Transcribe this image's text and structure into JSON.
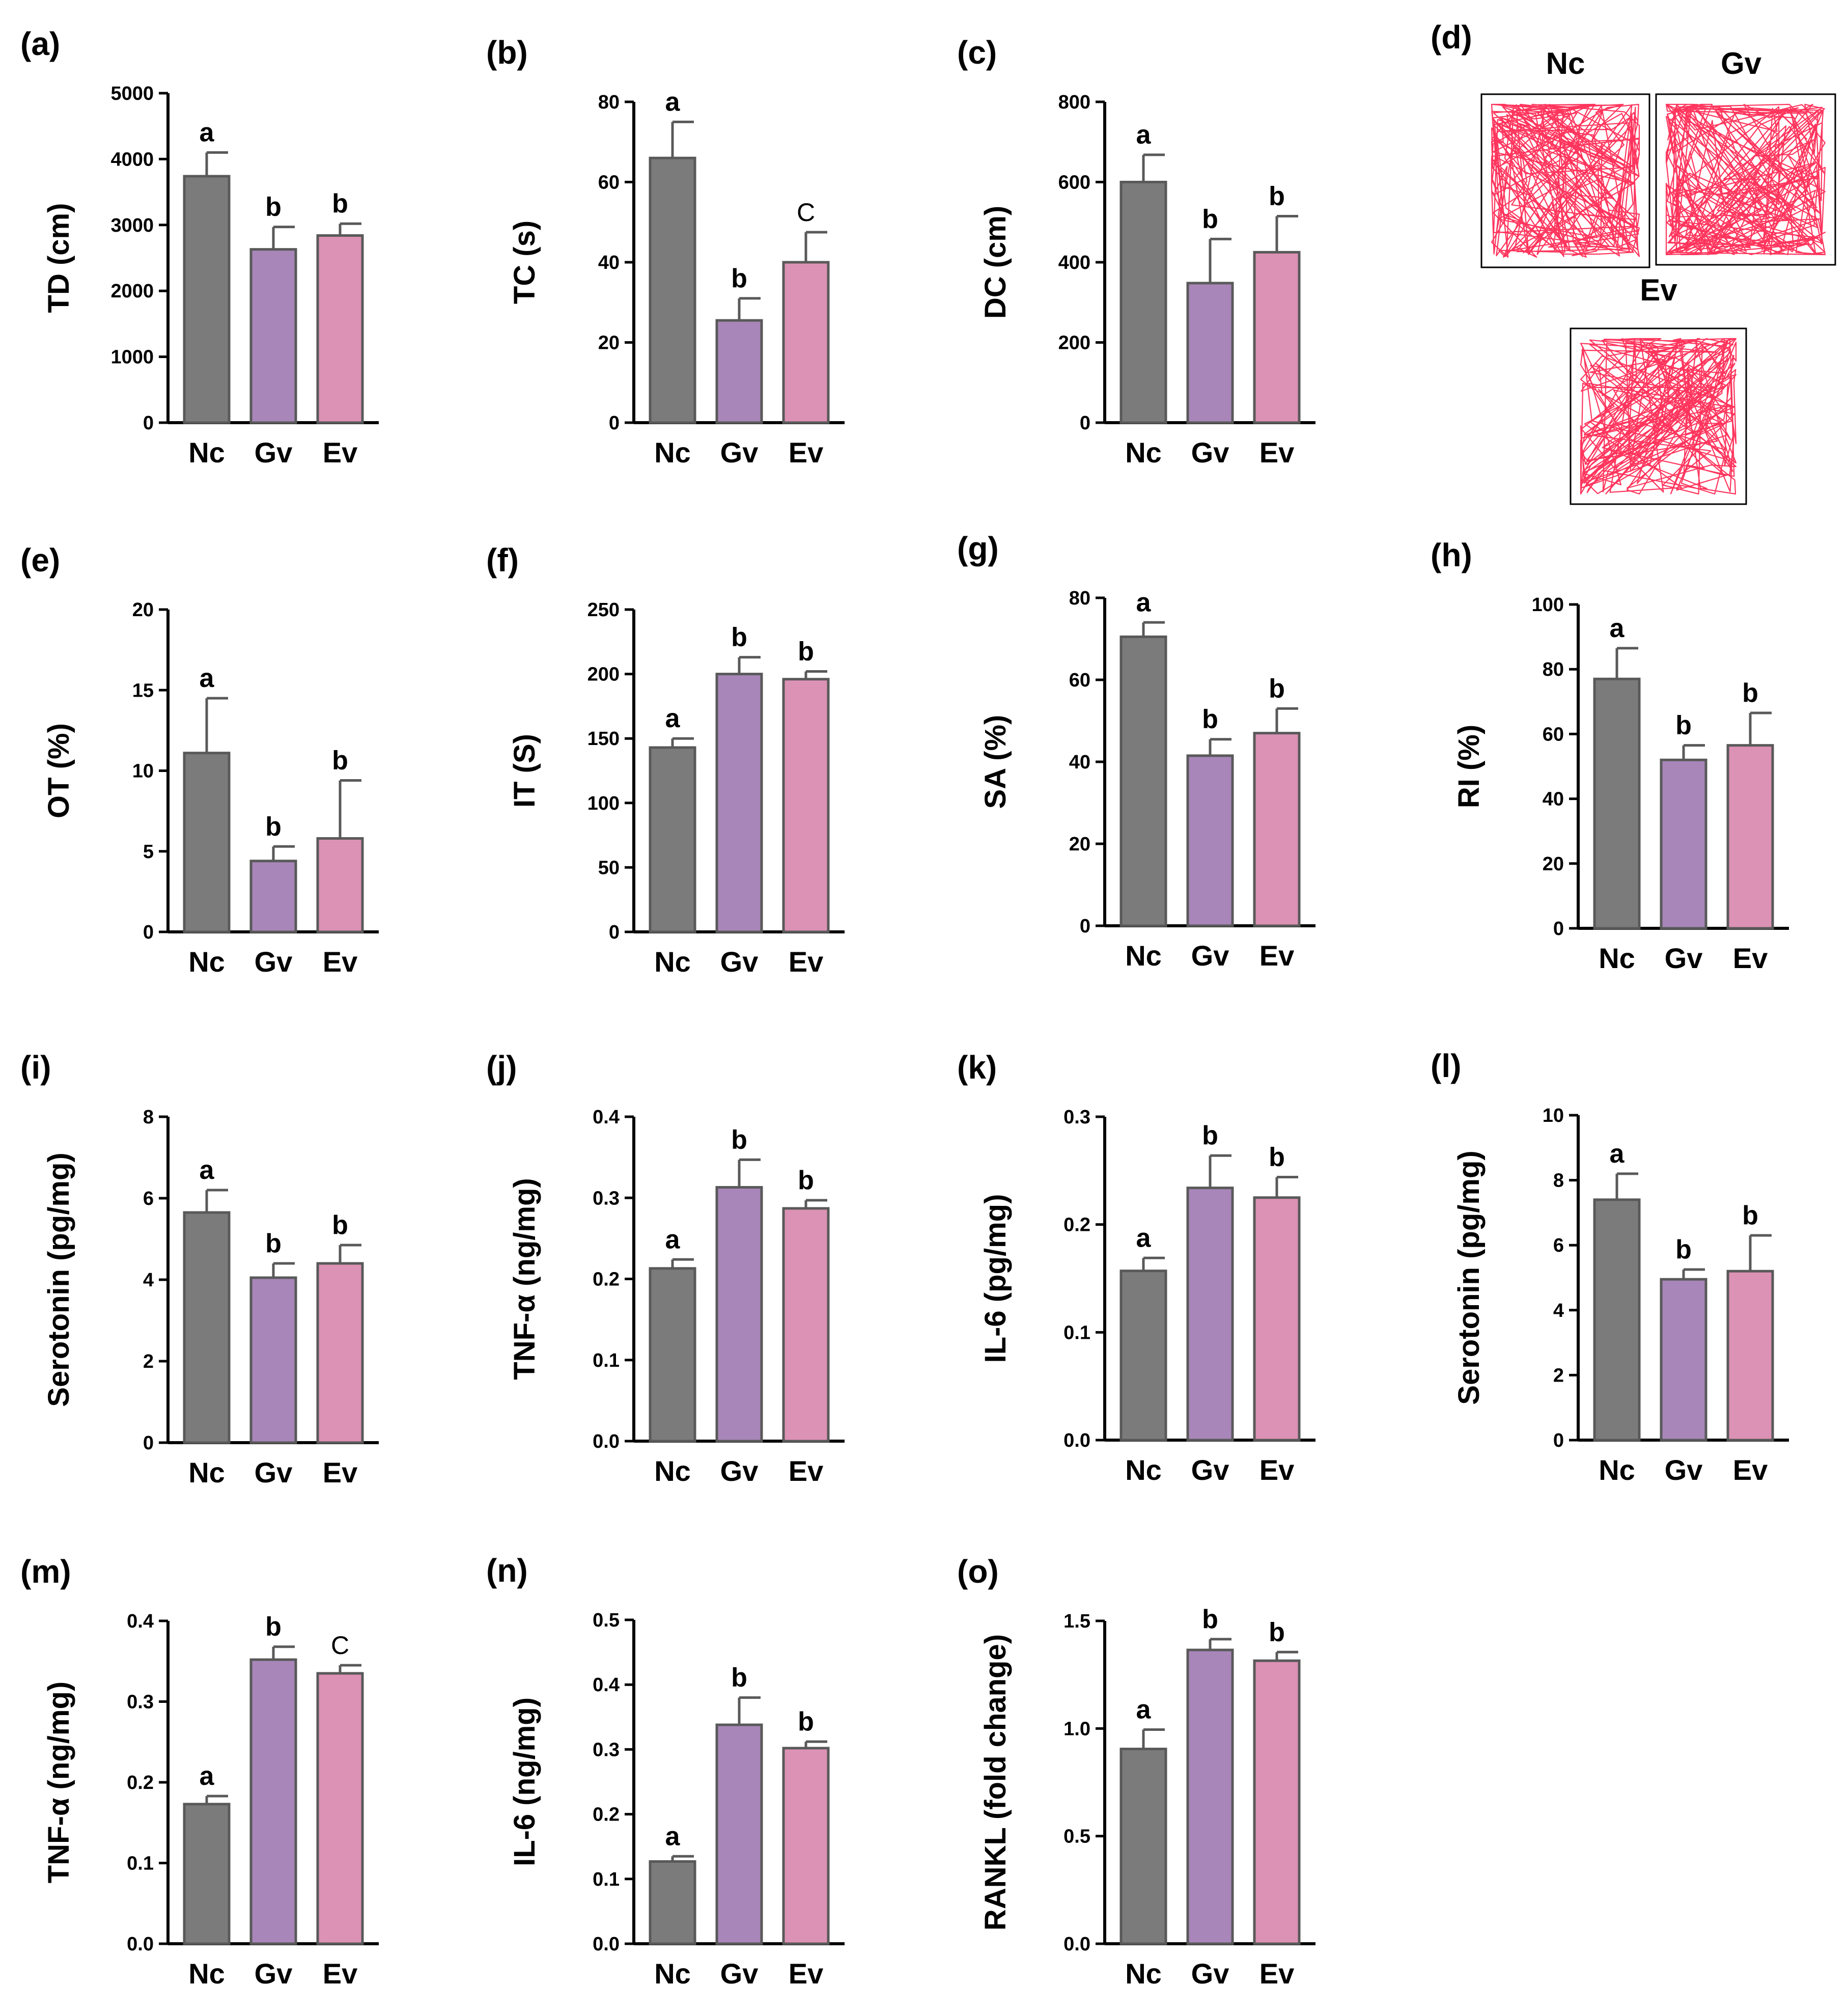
{
  "colors": {
    "Nc": "#7b7b7b",
    "Gv": "#a886b9",
    "Ev": "#dc92b4",
    "axis": "#000000",
    "bar_edge": "#595959",
    "track": "#ff1f4b"
  },
  "track_panel": {
    "label": "(d)",
    "titles": [
      "Nc",
      "Gv",
      "Ev"
    ]
  },
  "chart_data": [
    {
      "label": "(a)",
      "type": "bar",
      "ylabel": "TD (cm)",
      "categories": [
        "Nc",
        "Gv",
        "Ev"
      ],
      "values": [
        3740,
        2630,
        2840
      ],
      "errors": [
        360,
        340,
        180
      ],
      "ylim": [
        0,
        5000
      ],
      "ticks": [
        0,
        1000,
        2000,
        3000,
        4000,
        5000
      ],
      "tick_labels": [
        "0",
        "1000",
        "2000",
        "3000",
        "4000",
        "5000"
      ],
      "letters": [
        "a",
        "b",
        "b"
      ]
    },
    {
      "label": "(b)",
      "type": "bar",
      "ylabel": "TC (s)",
      "categories": [
        "Nc",
        "Gv",
        "Ev"
      ],
      "values": [
        66,
        25.5,
        40
      ],
      "errors": [
        9,
        5.5,
        7.5
      ],
      "ylim": [
        0,
        80
      ],
      "ticks": [
        0,
        20,
        40,
        60,
        80
      ],
      "tick_labels": [
        "0",
        "20",
        "40",
        "60",
        "80"
      ],
      "letters": [
        "a",
        "b",
        "C"
      ]
    },
    {
      "label": "(c)",
      "type": "bar",
      "ylabel": "DC (cm)",
      "categories": [
        "Nc",
        "Gv",
        "Ev"
      ],
      "values": [
        600,
        348,
        425
      ],
      "errors": [
        68,
        110,
        90
      ],
      "ylim": [
        0,
        800
      ],
      "ticks": [
        0,
        200,
        400,
        600,
        800
      ],
      "tick_labels": [
        "0",
        "200",
        "400",
        "600",
        "800"
      ],
      "letters": [
        "a",
        "b",
        "b"
      ]
    },
    {
      "label": "(e)",
      "type": "bar",
      "ylabel": "OT (%)",
      "categories": [
        "Nc",
        "Gv",
        "Ev"
      ],
      "values": [
        11.1,
        4.4,
        5.8
      ],
      "errors": [
        3.4,
        0.9,
        3.6
      ],
      "ylim": [
        0,
        20
      ],
      "ticks": [
        0,
        5,
        10,
        15,
        20
      ],
      "tick_labels": [
        "0",
        "5",
        "10",
        "15",
        "20"
      ],
      "letters": [
        "a",
        "b",
        "b"
      ]
    },
    {
      "label": "(f)",
      "type": "bar",
      "ylabel": "IT (S)",
      "categories": [
        "Nc",
        "Gv",
        "Ev"
      ],
      "values": [
        143,
        200,
        196
      ],
      "errors": [
        7,
        13,
        6
      ],
      "ylim": [
        0,
        250
      ],
      "ticks": [
        0,
        50,
        100,
        150,
        200,
        250
      ],
      "tick_labels": [
        "0",
        "50",
        "100",
        "150",
        "200",
        "250"
      ],
      "letters": [
        "a",
        "b",
        "b"
      ]
    },
    {
      "label": "(g)",
      "type": "bar",
      "ylabel": "SA (%)",
      "categories": [
        "Nc",
        "Gv",
        "Ev"
      ],
      "values": [
        70.5,
        41.5,
        47
      ],
      "errors": [
        3.5,
        4,
        6
      ],
      "ylim": [
        0,
        80
      ],
      "ticks": [
        0,
        20,
        40,
        60,
        80
      ],
      "tick_labels": [
        "0",
        "20",
        "40",
        "60",
        "80"
      ],
      "letters": [
        "a",
        "b",
        "b"
      ]
    },
    {
      "label": "(h)",
      "type": "bar",
      "ylabel": "RI (%)",
      "categories": [
        "Nc",
        "Gv",
        "Ev"
      ],
      "values": [
        77,
        52,
        56.5
      ],
      "errors": [
        9.5,
        4.5,
        10
      ],
      "ylim": [
        0,
        100
      ],
      "ticks": [
        0,
        20,
        40,
        60,
        80,
        100
      ],
      "tick_labels": [
        "0",
        "20",
        "40",
        "60",
        "80",
        "100"
      ],
      "letters": [
        "a",
        "b",
        "b"
      ]
    },
    {
      "label": "(i)",
      "type": "bar",
      "ylabel": "Serotonin (pg/mg)",
      "categories": [
        "Nc",
        "Gv",
        "Ev"
      ],
      "values": [
        5.65,
        4.05,
        4.4
      ],
      "errors": [
        0.55,
        0.35,
        0.45
      ],
      "ylim": [
        0,
        8
      ],
      "ticks": [
        0,
        2,
        4,
        6,
        8
      ],
      "tick_labels": [
        "0",
        "2",
        "4",
        "6",
        "8"
      ],
      "letters": [
        "a",
        "b",
        "b"
      ]
    },
    {
      "label": "(j)",
      "type": "bar",
      "ylabel": "TNF-α (ng/mg)",
      "categories": [
        "Nc",
        "Gv",
        "Ev"
      ],
      "values": [
        0.213,
        0.313,
        0.287
      ],
      "errors": [
        0.011,
        0.034,
        0.01
      ],
      "ylim": [
        0,
        0.4
      ],
      "ticks": [
        0,
        0.1,
        0.2,
        0.3,
        0.4
      ],
      "tick_labels": [
        "0.0",
        "0.1",
        "0.2",
        "0.3",
        "0.4"
      ],
      "letters": [
        "a",
        "b",
        "b"
      ]
    },
    {
      "label": "(k)",
      "type": "bar",
      "ylabel": "IL-6 (pg/mg)",
      "categories": [
        "Nc",
        "Gv",
        "Ev"
      ],
      "values": [
        0.157,
        0.234,
        0.225
      ],
      "errors": [
        0.012,
        0.03,
        0.019
      ],
      "ylim": [
        0,
        0.3
      ],
      "ticks": [
        0,
        0.1,
        0.2,
        0.3
      ],
      "tick_labels": [
        "0.0",
        "0.1",
        "0.2",
        "0.3"
      ],
      "letters": [
        "a",
        "b",
        "b"
      ]
    },
    {
      "label": "(l)",
      "type": "bar",
      "ylabel": "Serotonin (pg/mg)",
      "categories": [
        "Nc",
        "Gv",
        "Ev"
      ],
      "values": [
        7.4,
        4.95,
        5.2
      ],
      "errors": [
        0.8,
        0.3,
        1.1
      ],
      "ylim": [
        0,
        10
      ],
      "ticks": [
        0,
        2,
        4,
        6,
        8,
        10
      ],
      "tick_labels": [
        "0",
        "2",
        "4",
        "6",
        "8",
        "10"
      ],
      "letters": [
        "a",
        "b",
        "b"
      ]
    },
    {
      "label": "(m)",
      "type": "bar",
      "ylabel": "TNF-α (ng/mg)",
      "categories": [
        "Nc",
        "Gv",
        "Ev"
      ],
      "values": [
        0.173,
        0.352,
        0.335
      ],
      "errors": [
        0.01,
        0.016,
        0.01
      ],
      "ylim": [
        0,
        0.4
      ],
      "ticks": [
        0,
        0.1,
        0.2,
        0.3,
        0.4
      ],
      "tick_labels": [
        "0.0",
        "0.1",
        "0.2",
        "0.3",
        "0.4"
      ],
      "letters": [
        "a",
        "b",
        "C"
      ]
    },
    {
      "label": "(n)",
      "type": "bar",
      "ylabel": "IL-6 (ng/mg)",
      "categories": [
        "Nc",
        "Gv",
        "Ev"
      ],
      "values": [
        0.127,
        0.338,
        0.302
      ],
      "errors": [
        0.008,
        0.042,
        0.01
      ],
      "ylim": [
        0,
        0.5
      ],
      "ticks": [
        0,
        0.1,
        0.2,
        0.3,
        0.4,
        0.5
      ],
      "tick_labels": [
        "0.0",
        "0.1",
        "0.2",
        "0.3",
        "0.4",
        "0.5"
      ],
      "letters": [
        "a",
        "b",
        "b"
      ]
    },
    {
      "label": "(o)",
      "type": "bar",
      "ylabel": "RANKL (fold change)",
      "categories": [
        "Nc",
        "Gv",
        "Ev"
      ],
      "values": [
        0.905,
        1.365,
        1.315
      ],
      "errors": [
        0.09,
        0.05,
        0.04
      ],
      "ylim": [
        0,
        1.5
      ],
      "ticks": [
        0,
        0.5,
        1.0,
        1.5
      ],
      "tick_labels": [
        "0.0",
        "0.5",
        "1.0",
        "1.5"
      ],
      "letters": [
        "a",
        "b",
        "b"
      ]
    }
  ]
}
